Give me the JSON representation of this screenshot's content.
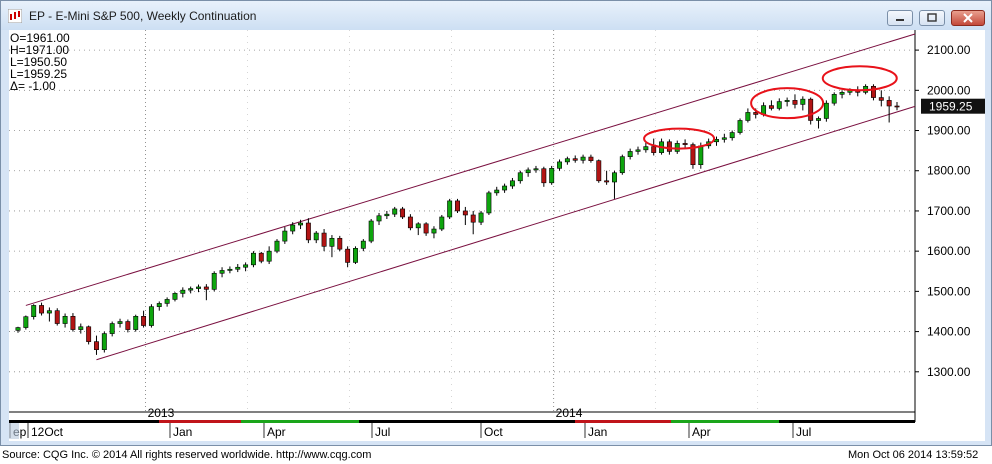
{
  "window": {
    "title": "EP - E-Mini S&P 500, Weekly Continuation"
  },
  "ohlc_readout": [
    "O=1961.00",
    "H=1971.00",
    "L=1950.50",
    "L=1959.25",
    "Δ=   -1.00"
  ],
  "price_tag": "1959.25",
  "footer": {
    "source": "Source: CQG Inc. © 2014 All rights reserved worldwide. http://www.cqg.com",
    "timestamp": "Mon Oct 06 2014 13:59:52"
  },
  "colors": {
    "up": "#0ea50e",
    "down": "#b21414",
    "channel": "#7a1040",
    "highlight": "#e8121a"
  },
  "chart_data": {
    "type": "candlestick",
    "y_ticks": [
      "1300.00",
      "1400.00",
      "1500.00",
      "1600.00",
      "1700.00",
      "1800.00",
      "1900.00",
      "2000.00",
      "2100.00"
    ],
    "ylim": [
      1200,
      2150
    ],
    "year_labels": [
      "2013",
      "2014"
    ],
    "month_labels": [
      "Sep",
      "Oct",
      "Jan",
      "Apr",
      "Jul",
      "Oct",
      "Jan",
      "Apr",
      "Jul"
    ],
    "month_label_display": [
      "ep",
      "12Oct",
      "Jan",
      "Apr",
      "Jul",
      "Oct",
      "Jan",
      "Apr",
      "Jul"
    ],
    "channel_upper": {
      "start": 1465,
      "end": 2140
    },
    "channel_lower": {
      "start": 1330,
      "end": 1960
    },
    "highlighted_tops": [
      "2014-03",
      "2014-06",
      "2014-09"
    ],
    "candles": [
      {
        "o": 1403,
        "h": 1412,
        "l": 1397,
        "c": 1410
      },
      {
        "o": 1410,
        "h": 1440,
        "l": 1405,
        "c": 1437
      },
      {
        "o": 1437,
        "h": 1468,
        "l": 1430,
        "c": 1465
      },
      {
        "o": 1465,
        "h": 1472,
        "l": 1440,
        "c": 1446
      },
      {
        "o": 1446,
        "h": 1460,
        "l": 1425,
        "c": 1452
      },
      {
        "o": 1452,
        "h": 1458,
        "l": 1415,
        "c": 1420
      },
      {
        "o": 1420,
        "h": 1445,
        "l": 1410,
        "c": 1438
      },
      {
        "o": 1438,
        "h": 1446,
        "l": 1400,
        "c": 1405
      },
      {
        "o": 1405,
        "h": 1420,
        "l": 1395,
        "c": 1412
      },
      {
        "o": 1412,
        "h": 1415,
        "l": 1368,
        "c": 1375
      },
      {
        "o": 1375,
        "h": 1390,
        "l": 1342,
        "c": 1355
      },
      {
        "o": 1355,
        "h": 1400,
        "l": 1348,
        "c": 1395
      },
      {
        "o": 1395,
        "h": 1425,
        "l": 1388,
        "c": 1420
      },
      {
        "o": 1420,
        "h": 1432,
        "l": 1410,
        "c": 1425
      },
      {
        "o": 1425,
        "h": 1430,
        "l": 1398,
        "c": 1405
      },
      {
        "o": 1405,
        "h": 1442,
        "l": 1400,
        "c": 1438
      },
      {
        "o": 1438,
        "h": 1452,
        "l": 1410,
        "c": 1415
      },
      {
        "o": 1415,
        "h": 1468,
        "l": 1410,
        "c": 1462
      },
      {
        "o": 1462,
        "h": 1475,
        "l": 1452,
        "c": 1470
      },
      {
        "o": 1470,
        "h": 1485,
        "l": 1462,
        "c": 1480
      },
      {
        "o": 1480,
        "h": 1498,
        "l": 1475,
        "c": 1495
      },
      {
        "o": 1495,
        "h": 1510,
        "l": 1485,
        "c": 1503
      },
      {
        "o": 1503,
        "h": 1512,
        "l": 1495,
        "c": 1507
      },
      {
        "o": 1507,
        "h": 1517,
        "l": 1498,
        "c": 1511
      },
      {
        "o": 1511,
        "h": 1518,
        "l": 1478,
        "c": 1505
      },
      {
        "o": 1505,
        "h": 1550,
        "l": 1500,
        "c": 1545
      },
      {
        "o": 1545,
        "h": 1560,
        "l": 1535,
        "c": 1552
      },
      {
        "o": 1552,
        "h": 1562,
        "l": 1545,
        "c": 1555
      },
      {
        "o": 1555,
        "h": 1568,
        "l": 1548,
        "c": 1560
      },
      {
        "o": 1560,
        "h": 1572,
        "l": 1550,
        "c": 1566
      },
      {
        "o": 1566,
        "h": 1600,
        "l": 1560,
        "c": 1595
      },
      {
        "o": 1595,
        "h": 1598,
        "l": 1570,
        "c": 1575
      },
      {
        "o": 1575,
        "h": 1612,
        "l": 1568,
        "c": 1600
      },
      {
        "o": 1600,
        "h": 1630,
        "l": 1595,
        "c": 1625
      },
      {
        "o": 1625,
        "h": 1660,
        "l": 1618,
        "c": 1650
      },
      {
        "o": 1650,
        "h": 1672,
        "l": 1642,
        "c": 1665
      },
      {
        "o": 1665,
        "h": 1678,
        "l": 1655,
        "c": 1670
      },
      {
        "o": 1670,
        "h": 1682,
        "l": 1620,
        "c": 1628
      },
      {
        "o": 1628,
        "h": 1650,
        "l": 1620,
        "c": 1645
      },
      {
        "o": 1645,
        "h": 1655,
        "l": 1600,
        "c": 1612
      },
      {
        "o": 1612,
        "h": 1640,
        "l": 1585,
        "c": 1632
      },
      {
        "o": 1632,
        "h": 1638,
        "l": 1600,
        "c": 1605
      },
      {
        "o": 1605,
        "h": 1612,
        "l": 1560,
        "c": 1572
      },
      {
        "o": 1572,
        "h": 1612,
        "l": 1568,
        "c": 1607
      },
      {
        "o": 1607,
        "h": 1630,
        "l": 1600,
        "c": 1625
      },
      {
        "o": 1625,
        "h": 1680,
        "l": 1620,
        "c": 1675
      },
      {
        "o": 1675,
        "h": 1695,
        "l": 1665,
        "c": 1688
      },
      {
        "o": 1688,
        "h": 1700,
        "l": 1680,
        "c": 1692
      },
      {
        "o": 1692,
        "h": 1710,
        "l": 1685,
        "c": 1705
      },
      {
        "o": 1705,
        "h": 1710,
        "l": 1680,
        "c": 1685
      },
      {
        "o": 1685,
        "h": 1692,
        "l": 1652,
        "c": 1658
      },
      {
        "o": 1658,
        "h": 1672,
        "l": 1640,
        "c": 1668
      },
      {
        "o": 1668,
        "h": 1672,
        "l": 1638,
        "c": 1645
      },
      {
        "o": 1645,
        "h": 1662,
        "l": 1632,
        "c": 1655
      },
      {
        "o": 1655,
        "h": 1690,
        "l": 1650,
        "c": 1685
      },
      {
        "o": 1685,
        "h": 1730,
        "l": 1680,
        "c": 1725
      },
      {
        "o": 1725,
        "h": 1730,
        "l": 1695,
        "c": 1700
      },
      {
        "o": 1700,
        "h": 1710,
        "l": 1665,
        "c": 1690
      },
      {
        "o": 1690,
        "h": 1700,
        "l": 1642,
        "c": 1672
      },
      {
        "o": 1672,
        "h": 1700,
        "l": 1665,
        "c": 1695
      },
      {
        "o": 1695,
        "h": 1750,
        "l": 1690,
        "c": 1745
      },
      {
        "o": 1745,
        "h": 1760,
        "l": 1738,
        "c": 1752
      },
      {
        "o": 1752,
        "h": 1768,
        "l": 1745,
        "c": 1762
      },
      {
        "o": 1762,
        "h": 1782,
        "l": 1755,
        "c": 1775
      },
      {
        "o": 1775,
        "h": 1800,
        "l": 1768,
        "c": 1795
      },
      {
        "o": 1795,
        "h": 1808,
        "l": 1785,
        "c": 1802
      },
      {
        "o": 1802,
        "h": 1812,
        "l": 1795,
        "c": 1805
      },
      {
        "o": 1805,
        "h": 1810,
        "l": 1760,
        "c": 1770
      },
      {
        "o": 1770,
        "h": 1812,
        "l": 1765,
        "c": 1806
      },
      {
        "o": 1806,
        "h": 1828,
        "l": 1800,
        "c": 1822
      },
      {
        "o": 1822,
        "h": 1835,
        "l": 1815,
        "c": 1830
      },
      {
        "o": 1830,
        "h": 1838,
        "l": 1820,
        "c": 1826
      },
      {
        "o": 1826,
        "h": 1840,
        "l": 1818,
        "c": 1834
      },
      {
        "o": 1834,
        "h": 1840,
        "l": 1820,
        "c": 1825
      },
      {
        "o": 1825,
        "h": 1828,
        "l": 1770,
        "c": 1775
      },
      {
        "o": 1775,
        "h": 1800,
        "l": 1765,
        "c": 1772
      },
      {
        "o": 1772,
        "h": 1800,
        "l": 1730,
        "c": 1795
      },
      {
        "o": 1795,
        "h": 1840,
        "l": 1790,
        "c": 1835
      },
      {
        "o": 1835,
        "h": 1855,
        "l": 1828,
        "c": 1848
      },
      {
        "o": 1848,
        "h": 1860,
        "l": 1840,
        "c": 1852
      },
      {
        "o": 1852,
        "h": 1870,
        "l": 1845,
        "c": 1860
      },
      {
        "o": 1860,
        "h": 1880,
        "l": 1838,
        "c": 1845
      },
      {
        "o": 1845,
        "h": 1880,
        "l": 1840,
        "c": 1872
      },
      {
        "o": 1872,
        "h": 1878,
        "l": 1840,
        "c": 1848
      },
      {
        "o": 1848,
        "h": 1875,
        "l": 1842,
        "c": 1868
      },
      {
        "o": 1868,
        "h": 1878,
        "l": 1855,
        "c": 1865
      },
      {
        "o": 1865,
        "h": 1870,
        "l": 1805,
        "c": 1815
      },
      {
        "o": 1815,
        "h": 1870,
        "l": 1805,
        "c": 1862
      },
      {
        "o": 1862,
        "h": 1880,
        "l": 1855,
        "c": 1872
      },
      {
        "o": 1872,
        "h": 1885,
        "l": 1862,
        "c": 1878
      },
      {
        "o": 1878,
        "h": 1892,
        "l": 1870,
        "c": 1882
      },
      {
        "o": 1882,
        "h": 1900,
        "l": 1875,
        "c": 1895
      },
      {
        "o": 1895,
        "h": 1930,
        "l": 1890,
        "c": 1925
      },
      {
        "o": 1925,
        "h": 1955,
        "l": 1920,
        "c": 1945
      },
      {
        "o": 1945,
        "h": 1955,
        "l": 1930,
        "c": 1940
      },
      {
        "o": 1940,
        "h": 1970,
        "l": 1935,
        "c": 1962
      },
      {
        "o": 1962,
        "h": 1975,
        "l": 1950,
        "c": 1955
      },
      {
        "o": 1955,
        "h": 1980,
        "l": 1950,
        "c": 1972
      },
      {
        "o": 1972,
        "h": 1982,
        "l": 1960,
        "c": 1975
      },
      {
        "o": 1975,
        "h": 1990,
        "l": 1955,
        "c": 1965
      },
      {
        "o": 1965,
        "h": 1985,
        "l": 1950,
        "c": 1978
      },
      {
        "o": 1978,
        "h": 1982,
        "l": 1915,
        "c": 1925
      },
      {
        "o": 1925,
        "h": 1935,
        "l": 1905,
        "c": 1930
      },
      {
        "o": 1930,
        "h": 1975,
        "l": 1922,
        "c": 1968
      },
      {
        "o": 1968,
        "h": 1995,
        "l": 1962,
        "c": 1990
      },
      {
        "o": 1990,
        "h": 2000,
        "l": 1980,
        "c": 1995
      },
      {
        "o": 1995,
        "h": 2005,
        "l": 1988,
        "c": 2000
      },
      {
        "o": 2000,
        "h": 2010,
        "l": 1985,
        "c": 1995
      },
      {
        "o": 1995,
        "h": 2015,
        "l": 1990,
        "c": 2010
      },
      {
        "o": 2010,
        "h": 2015,
        "l": 1975,
        "c": 1982
      },
      {
        "o": 1982,
        "h": 2000,
        "l": 1960,
        "c": 1975
      },
      {
        "o": 1975,
        "h": 1985,
        "l": 1920,
        "c": 1961
      },
      {
        "o": 1961,
        "h": 1971,
        "l": 1950.5,
        "c": 1959.25
      }
    ]
  }
}
